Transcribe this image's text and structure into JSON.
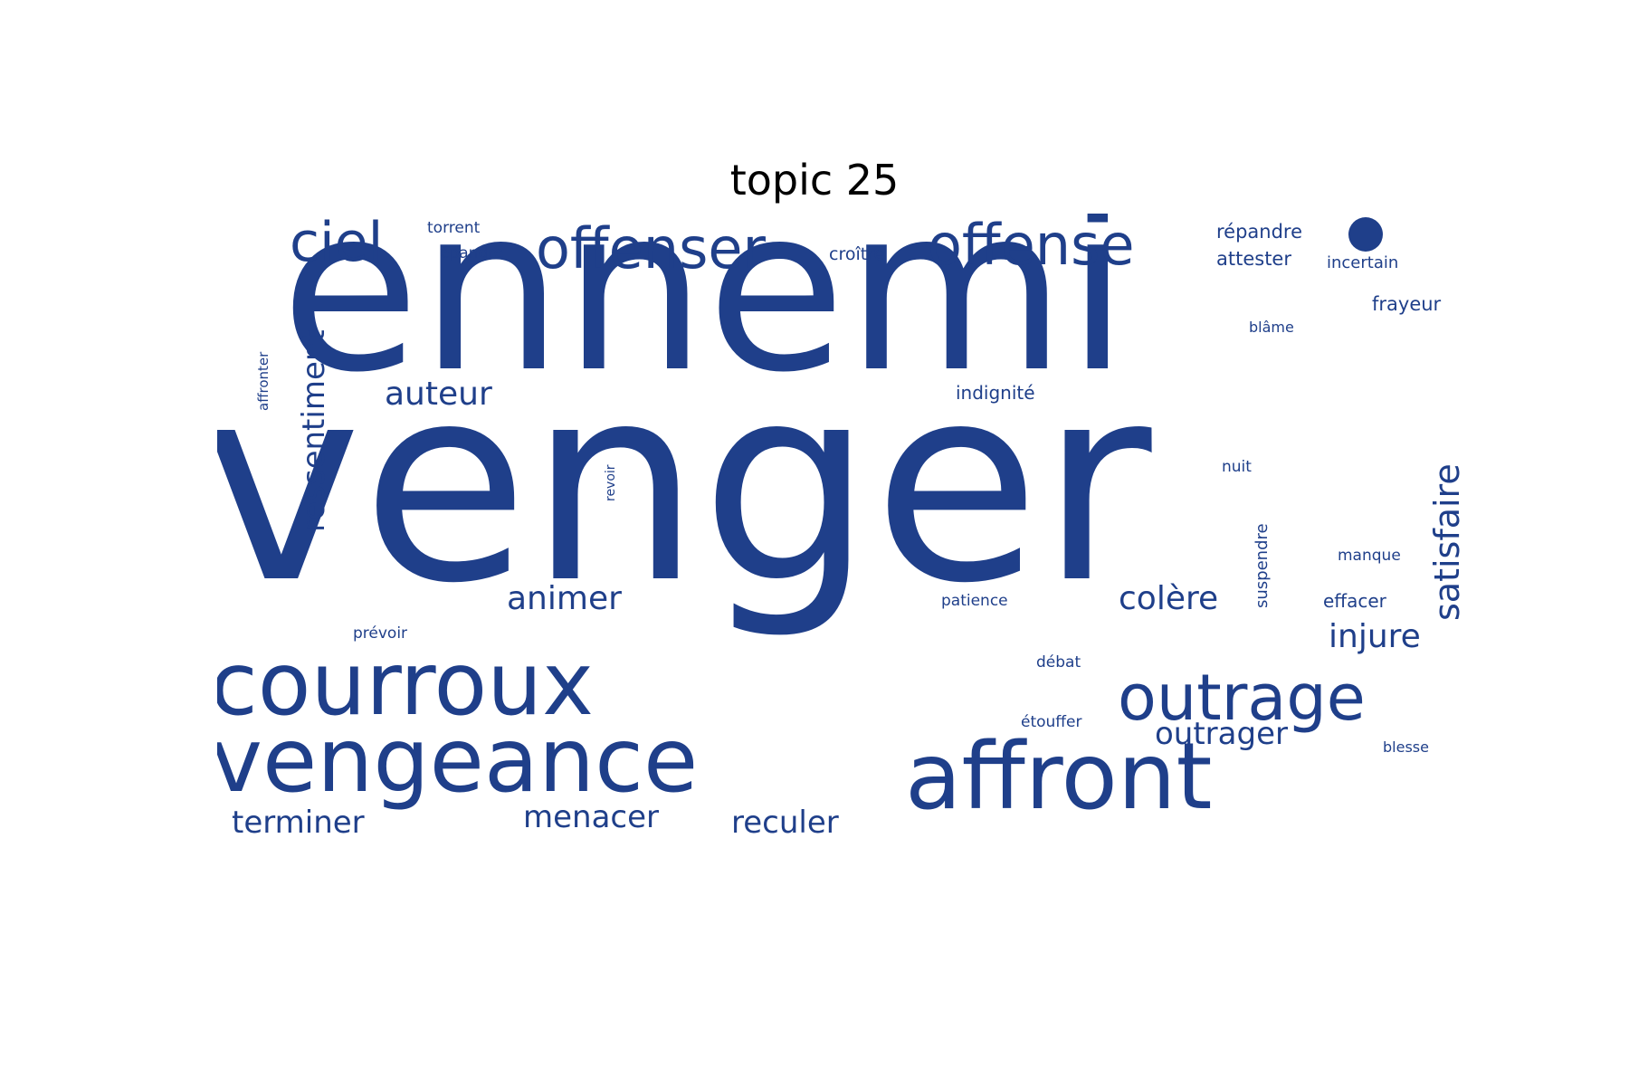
{
  "title": "topic 25",
  "colors": {
    "word": "#1f3f8a",
    "title": "#000000",
    "background": "#ffffff"
  },
  "words": {
    "venger": "venger",
    "ennemi": "ennemi",
    "courroux": "courroux",
    "vengeance": "vengeance",
    "affront": "affront",
    "outrage": "outrage",
    "offenser": "offenser",
    "offense": "offense",
    "ciel": "ciel",
    "ressentiment": "ressentiment",
    "satisfaire": "satisfaire",
    "auteur": "auteur",
    "animer": "animer",
    "colere": "colère",
    "injure": "injure",
    "outrager": "outrager",
    "terminer": "terminer",
    "menacer": "menacer",
    "reculer": "reculer",
    "torrent": "torrent",
    "epandre": "épandre",
    "croitre": "croître",
    "repandre": "répandre",
    "attester": "attester",
    "incertain": "incertain",
    "frayeur": "frayeur",
    "blame": "blâme",
    "indignite": "indignité",
    "nuit": "nuit",
    "suspendre": "suspendre",
    "manque": "manque",
    "patience": "patience",
    "effacer": "effacer",
    "debat": "débat",
    "etouffer": "étouffer",
    "blesse": "blesse",
    "prevoir": "prévoir",
    "revoir": "revoir",
    "affronter": "affronter"
  }
}
